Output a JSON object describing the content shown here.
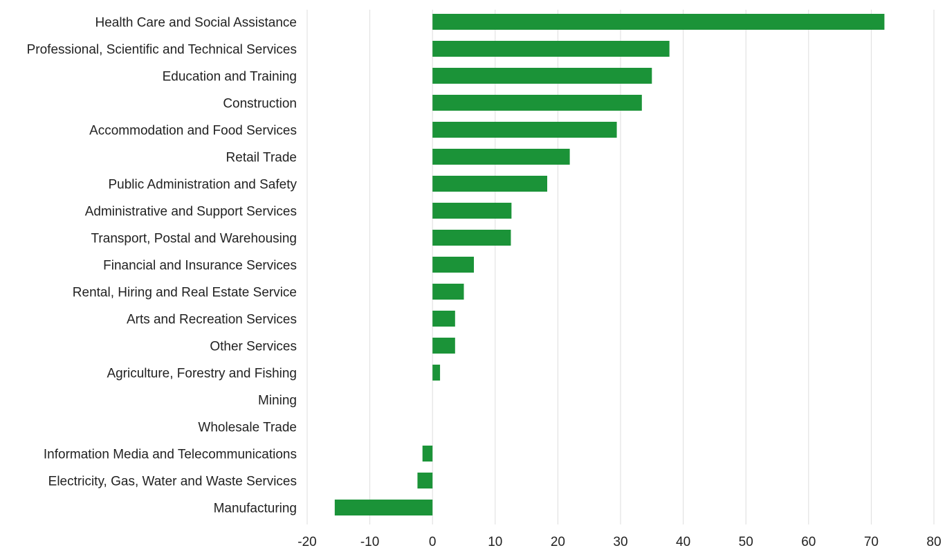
{
  "chart_data": {
    "type": "bar",
    "orientation": "horizontal",
    "title": "",
    "xlabel": "",
    "ylabel": "",
    "categories": [
      "Health Care and Social Assistance",
      "Professional, Scientific and Technical Services",
      "Education and Training",
      "Construction",
      "Accommodation and Food Services",
      "Retail Trade",
      "Public Administration and Safety",
      "Administrative and Support Services",
      "Transport, Postal and Warehousing",
      "Financial and Insurance Services",
      "Rental, Hiring and Real Estate Service",
      "Arts and Recreation Services",
      "Other Services",
      "Agriculture, Forestry and Fishing",
      "Mining",
      "Wholesale Trade",
      "Information Media and Telecommunications",
      "Electricity, Gas, Water and Waste Services",
      "Manufacturing"
    ],
    "values": [
      72.1,
      37.8,
      35.0,
      33.4,
      29.4,
      21.9,
      18.3,
      12.6,
      12.5,
      6.6,
      5.0,
      3.6,
      3.6,
      1.2,
      0,
      0,
      -1.6,
      -2.4,
      -15.6
    ],
    "xlim": [
      -20,
      80
    ],
    "xticks": [
      -20,
      -10,
      0,
      10,
      20,
      30,
      40,
      50,
      60,
      70,
      80
    ],
    "grid": "vertical",
    "legend": "none",
    "bar_color": "#1b9338"
  }
}
